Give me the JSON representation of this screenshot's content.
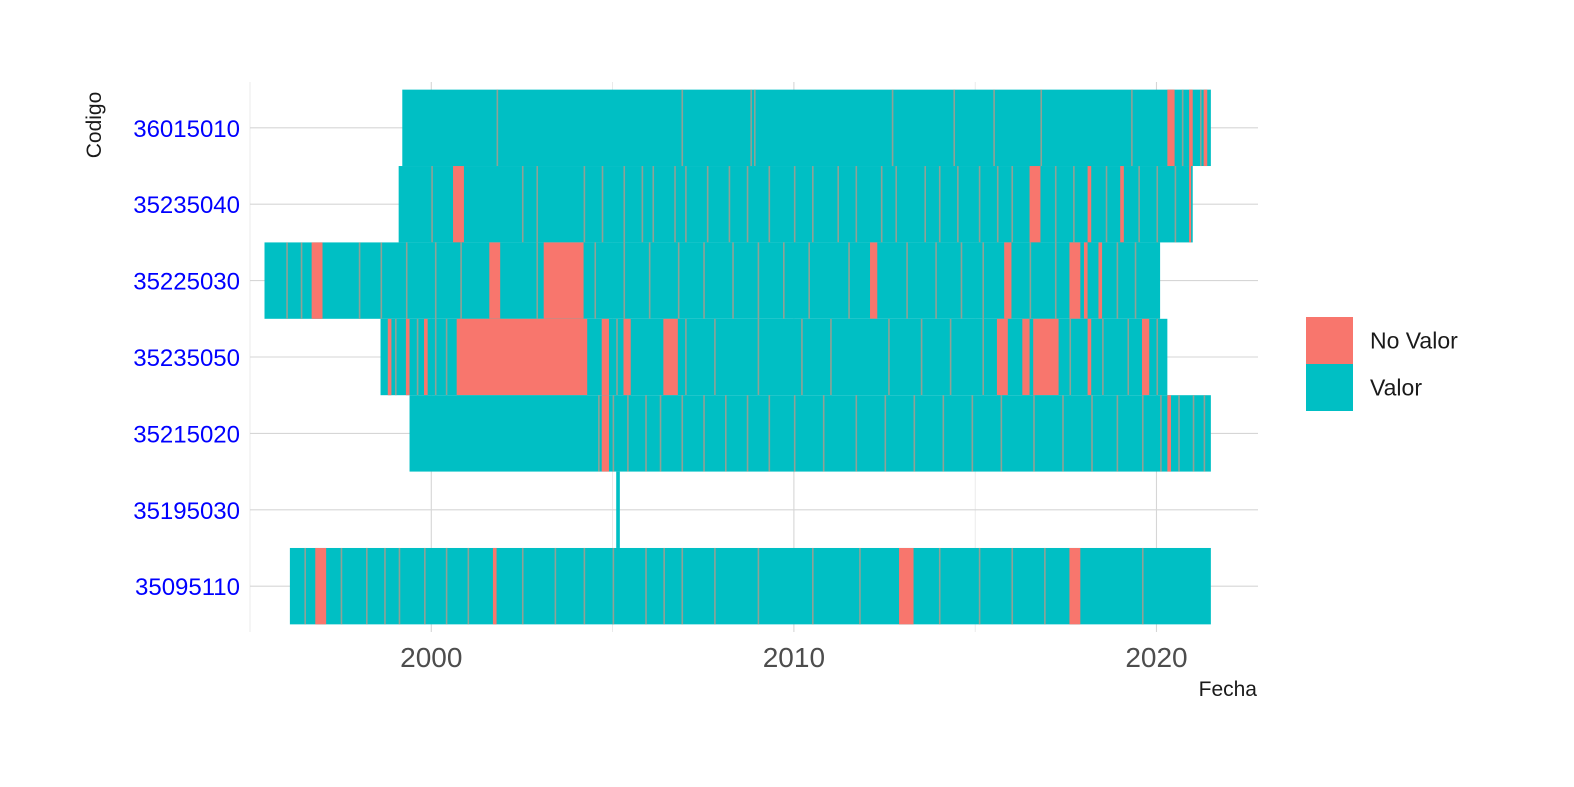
{
  "chart_data": {
    "type": "heatmap",
    "title": "",
    "xlabel": "Fecha",
    "ylabel": "Codigo",
    "xlim": [
      1995.0,
      2022.8
    ],
    "x_ticks": [
      2000,
      2010,
      2020
    ],
    "grid": true,
    "legend_position": "right",
    "colors": {
      "No Valor": "#f8766d",
      "Valor": "#00bfc4"
    },
    "legend": [
      {
        "key": "No Valor",
        "label": "No Valor"
      },
      {
        "key": "Valor",
        "label": "Valor"
      }
    ],
    "stations": [
      {
        "code": "36015010",
        "start": 1999.2,
        "end": 2021.5,
        "no_valor": [
          [
            2020.3,
            2020.5
          ],
          [
            2020.9,
            2021.0
          ],
          [
            2021.3,
            2021.4
          ]
        ],
        "gaps": [
          2001.8,
          2006.9,
          2008.8,
          2008.9,
          2012.7,
          2014.4,
          2015.5,
          2016.8,
          2019.3,
          2020.7,
          2021.2
        ]
      },
      {
        "code": "35235040",
        "start": 1999.1,
        "end": 2021.0,
        "no_valor": [
          [
            2000.6,
            2000.9
          ],
          [
            2016.5,
            2016.8
          ],
          [
            2018.1,
            2018.2
          ],
          [
            2019.0,
            2019.1
          ],
          [
            2020.9,
            2020.95
          ]
        ],
        "gaps": [
          2000.0,
          2002.5,
          2002.9,
          2004.2,
          2004.7,
          2005.3,
          2005.8,
          2006.1,
          2006.7,
          2007.0,
          2007.6,
          2008.2,
          2008.7,
          2009.3,
          2010.0,
          2010.5,
          2011.2,
          2011.7,
          2012.4,
          2012.8,
          2013.6,
          2014.0,
          2014.5,
          2015.1,
          2015.6,
          2016.0,
          2017.2,
          2017.7,
          2018.6,
          2019.5,
          2020.0,
          2020.5
        ]
      },
      {
        "code": "35225030",
        "start": 1995.4,
        "end": 2020.1,
        "no_valor": [
          [
            1996.7,
            1997.0
          ],
          [
            2001.6,
            2001.9
          ],
          [
            2003.1,
            2004.2
          ],
          [
            2012.1,
            2012.3
          ],
          [
            2015.8,
            2016.0
          ],
          [
            2017.6,
            2017.9
          ],
          [
            2018.0,
            2018.1
          ],
          [
            2018.4,
            2018.5
          ]
        ],
        "gaps": [
          1996.0,
          1996.4,
          1998.0,
          1998.6,
          1999.3,
          2000.1,
          2000.8,
          2002.9,
          2004.5,
          2005.3,
          2006.0,
          2006.8,
          2007.5,
          2008.3,
          2009.0,
          2009.7,
          2010.4,
          2011.5,
          2013.1,
          2013.9,
          2014.6,
          2015.2,
          2016.5,
          2017.2,
          2018.9,
          2019.4
        ]
      },
      {
        "code": "35235050",
        "start": 1998.6,
        "end": 2020.3,
        "no_valor": [
          [
            1998.8,
            1998.9
          ],
          [
            1999.3,
            1999.4
          ],
          [
            1999.8,
            1999.9
          ],
          [
            2000.7,
            2004.3
          ],
          [
            2004.7,
            2004.9
          ],
          [
            2005.3,
            2005.5
          ],
          [
            2006.4,
            2006.8
          ],
          [
            2015.6,
            2015.9
          ],
          [
            2016.3,
            2016.5
          ],
          [
            2016.6,
            2017.3
          ],
          [
            2018.1,
            2018.2
          ],
          [
            2019.6,
            2019.8
          ]
        ],
        "gaps": [
          1999.0,
          1999.6,
          2000.1,
          2000.4,
          2005.1,
          2007.0,
          2007.8,
          2009.0,
          2010.2,
          2011.0,
          2012.6,
          2013.5,
          2014.3,
          2015.2,
          2017.6,
          2018.5,
          2019.2,
          2020.0
        ]
      },
      {
        "code": "35215020",
        "start": 1999.4,
        "end": 2021.5,
        "no_valor": [
          [
            2004.7,
            2004.9
          ],
          [
            2020.3,
            2020.4
          ]
        ],
        "gaps": [
          2004.6,
          2005.0,
          2005.4,
          2005.9,
          2006.3,
          2006.9,
          2007.5,
          2008.1,
          2008.7,
          2009.3,
          2010.0,
          2010.8,
          2011.7,
          2012.5,
          2013.3,
          2014.1,
          2014.9,
          2015.7,
          2016.6,
          2017.4,
          2018.2,
          2018.9,
          2019.6,
          2020.1,
          2020.6,
          2021.0,
          2021.3
        ]
      },
      {
        "code": "35195030",
        "start": 2005.1,
        "end": 2005.2,
        "no_valor": [],
        "gaps": []
      },
      {
        "code": "35095110",
        "start": 1996.1,
        "end": 2021.5,
        "no_valor": [
          [
            1996.8,
            1997.1
          ],
          [
            2001.7,
            2001.8
          ],
          [
            2012.9,
            2013.3
          ],
          [
            2017.6,
            2017.9
          ]
        ],
        "gaps": [
          1996.5,
          1997.5,
          1998.2,
          1998.7,
          1999.1,
          1999.8,
          2000.4,
          2001.0,
          2002.5,
          2003.4,
          2004.2,
          2005.0,
          2005.9,
          2006.4,
          2006.9,
          2007.8,
          2009.0,
          2010.5,
          2011.8,
          2014.0,
          2015.1,
          2016.0,
          2016.9,
          2019.6
        ]
      }
    ]
  }
}
